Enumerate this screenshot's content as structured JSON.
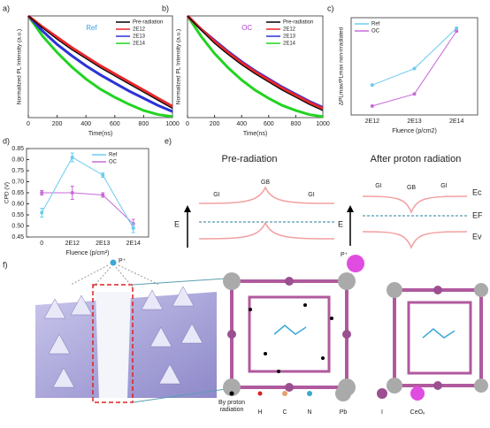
{
  "chart_data": [
    {
      "type": "line",
      "label": "a)",
      "title": "Ref",
      "title_color": "#3aa0e0",
      "xlabel": "Time(ns)",
      "ylabel": "Normalized PL Intensity (a.u.)",
      "x": [
        0,
        100,
        200,
        300,
        400,
        500,
        600,
        700,
        800,
        900,
        1000
      ],
      "xlim": [
        0,
        1000
      ],
      "xticks": [
        0,
        200,
        400,
        600,
        800,
        1000
      ],
      "ylim": [
        0,
        1
      ],
      "legend": "upper right",
      "series": [
        {
          "name": "Pre-radiation",
          "color": "#000000",
          "values": [
            1,
            0.88,
            0.77,
            0.67,
            0.58,
            0.49,
            0.41,
            0.33,
            0.25,
            0.17,
            0.09
          ]
        },
        {
          "name": "2E12",
          "color": "#e8262b",
          "values": [
            1,
            0.89,
            0.79,
            0.69,
            0.6,
            0.51,
            0.43,
            0.35,
            0.27,
            0.19,
            0.11
          ]
        },
        {
          "name": "2E13",
          "color": "#2b33d6",
          "values": [
            1,
            0.85,
            0.72,
            0.61,
            0.51,
            0.42,
            0.34,
            0.26,
            0.19,
            0.12,
            0.06
          ]
        },
        {
          "name": "2E14",
          "color": "#22d422",
          "values": [
            1,
            0.8,
            0.64,
            0.5,
            0.38,
            0.28,
            0.2,
            0.13,
            0.07,
            0.03,
            0.01
          ]
        }
      ]
    },
    {
      "type": "line",
      "label": "b)",
      "title": "OC",
      "title_color": "#b040d0",
      "xlabel": "Time(ns)",
      "ylabel": "Normalized PL Intensity (a.u.)",
      "x": [
        0,
        100,
        200,
        300,
        400,
        500,
        600,
        700,
        800,
        900,
        1000
      ],
      "xlim": [
        0,
        1000
      ],
      "xticks": [
        0,
        200,
        400,
        600,
        800,
        1000
      ],
      "ylim": [
        0,
        1
      ],
      "legend": "upper right",
      "series": [
        {
          "name": "Pre-radiation",
          "color": "#000000",
          "values": [
            1,
            0.86,
            0.73,
            0.62,
            0.52,
            0.43,
            0.35,
            0.27,
            0.2,
            0.13,
            0.07
          ]
        },
        {
          "name": "2E12",
          "color": "#e8262b",
          "values": [
            1,
            0.87,
            0.75,
            0.64,
            0.54,
            0.45,
            0.37,
            0.29,
            0.22,
            0.15,
            0.09
          ]
        },
        {
          "name": "2E13",
          "color": "#2b33d6",
          "values": [
            1,
            0.87,
            0.76,
            0.65,
            0.55,
            0.46,
            0.38,
            0.3,
            0.23,
            0.16,
            0.1
          ]
        },
        {
          "name": "2E14",
          "color": "#22d422",
          "values": [
            1,
            0.8,
            0.63,
            0.49,
            0.37,
            0.27,
            0.19,
            0.12,
            0.07,
            0.03,
            0.01
          ]
        }
      ]
    },
    {
      "type": "line",
      "label": "c)",
      "xlabel": "Fluence (p/cm2)",
      "ylabel": "ΔPLmax/PLmax non-irradiated",
      "categories": [
        "2E12",
        "2E13",
        "2E14"
      ],
      "ylim": [
        0.1,
        0.75
      ],
      "legend": "upper left",
      "markers": true,
      "series": [
        {
          "name": "Ref",
          "color": "#6ccbf0",
          "values": [
            0.3,
            0.41,
            0.68
          ]
        },
        {
          "name": "OC",
          "color": "#c76ad9",
          "values": [
            0.16,
            0.24,
            0.66
          ]
        }
      ]
    },
    {
      "type": "line",
      "label": "d)",
      "xlabel": "Fluence (p/cm²)",
      "ylabel": "CPD (V)",
      "categories": [
        "0",
        "2E12",
        "2E13",
        "2E14"
      ],
      "ylim": [
        0.45,
        0.85
      ],
      "yticks": [
        0.45,
        {
          "value": 0.5,
          "label": "0.50"
        },
        0.55,
        {
          "value": 0.6,
          "label": "0.60"
        },
        0.65,
        {
          "value": 0.7,
          "label": "0.70"
        },
        0.75,
        {
          "value": 0.8,
          "label": "0.80"
        },
        0.85
      ],
      "legend": "upper right",
      "markers": true,
      "series": [
        {
          "name": "Ref",
          "color": "#6ccbf0",
          "values": [
            0.56,
            0.81,
            0.73,
            0.49
          ],
          "errors": [
            0.02,
            0.02,
            0.01,
            0.02
          ]
        },
        {
          "name": "OC",
          "color": "#c76ad9",
          "values": [
            0.65,
            0.65,
            0.64,
            0.51
          ],
          "errors": [
            0.01,
            0.03,
            0.01,
            0.02
          ]
        }
      ]
    }
  ],
  "diagram_e": {
    "label": "e)",
    "pre": {
      "title": "Pre-radiation",
      "gb": "GB",
      "gi_left": "GI",
      "gi_right": "GI",
      "energy": "E"
    },
    "after": {
      "title": "After proton radiation",
      "gb": "GB",
      "gi_left": "GI",
      "gi_right": "GI",
      "energy": "E",
      "ec": "Ec",
      "ef": "EF",
      "ev": "Ev"
    }
  },
  "diagram_f": {
    "label": "f)",
    "proton": "P⁺",
    "legend": [
      "By proton radiation",
      "H",
      "C",
      "N",
      "Pb",
      "I",
      "CeOₓ"
    ]
  }
}
